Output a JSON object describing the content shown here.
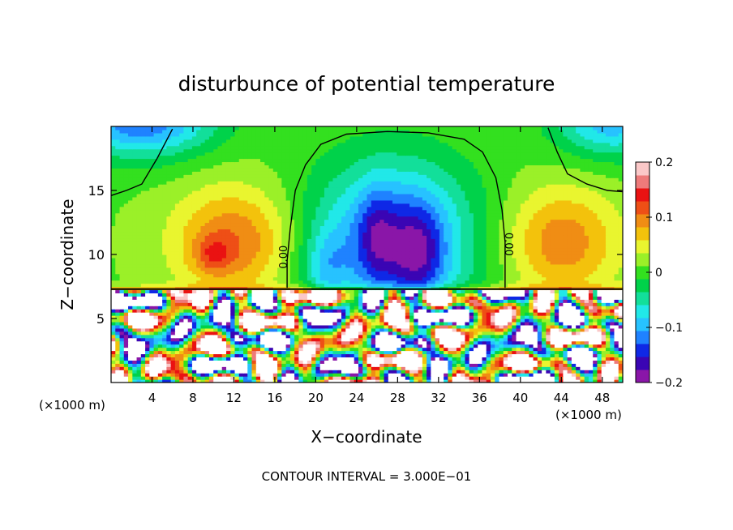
{
  "chart_data": {
    "type": "heatmap",
    "title": "disturbunce of potential temperature",
    "xlabel": "X−coordinate",
    "ylabel": "Z−coordinate",
    "x_unit": "(×1000 m)",
    "x_unit_left": "(×1000 m)",
    "x_ticks": [
      "4",
      "8",
      "12",
      "16",
      "20",
      "24",
      "28",
      "32",
      "36",
      "40",
      "44",
      "48"
    ],
    "x_tick_values": [
      4,
      8,
      12,
      16,
      20,
      24,
      28,
      32,
      36,
      40,
      44,
      48
    ],
    "y_ticks": [
      "5",
      "10",
      "15"
    ],
    "y_tick_values": [
      5,
      10,
      15
    ],
    "xlim": [
      0,
      50
    ],
    "ylim": [
      0,
      20
    ],
    "colorbar": {
      "ticks": [
        "0.2",
        "0.1",
        "0",
        "−0.1",
        "−0.2"
      ],
      "tick_values": [
        0.2,
        0.1,
        0,
        -0.1,
        -0.2
      ],
      "range": [
        -0.2,
        0.2
      ],
      "colors": [
        "#8a16a8",
        "#3a05b4",
        "#0f28e6",
        "#1f82ff",
        "#27c2ff",
        "#21e8e8",
        "#12df9a",
        "#00d24a",
        "#33e01f",
        "#9bf028",
        "#e9f52f",
        "#f3c20c",
        "#f08d14",
        "#ee4f16",
        "#ea1212",
        "#ee7a7a",
        "#fbc8c8"
      ]
    },
    "contour_labels": [
      "0.00",
      "0.00"
    ],
    "annotation": "CONTOUR INTERVAL = 3.000E−01",
    "grid": false
  }
}
